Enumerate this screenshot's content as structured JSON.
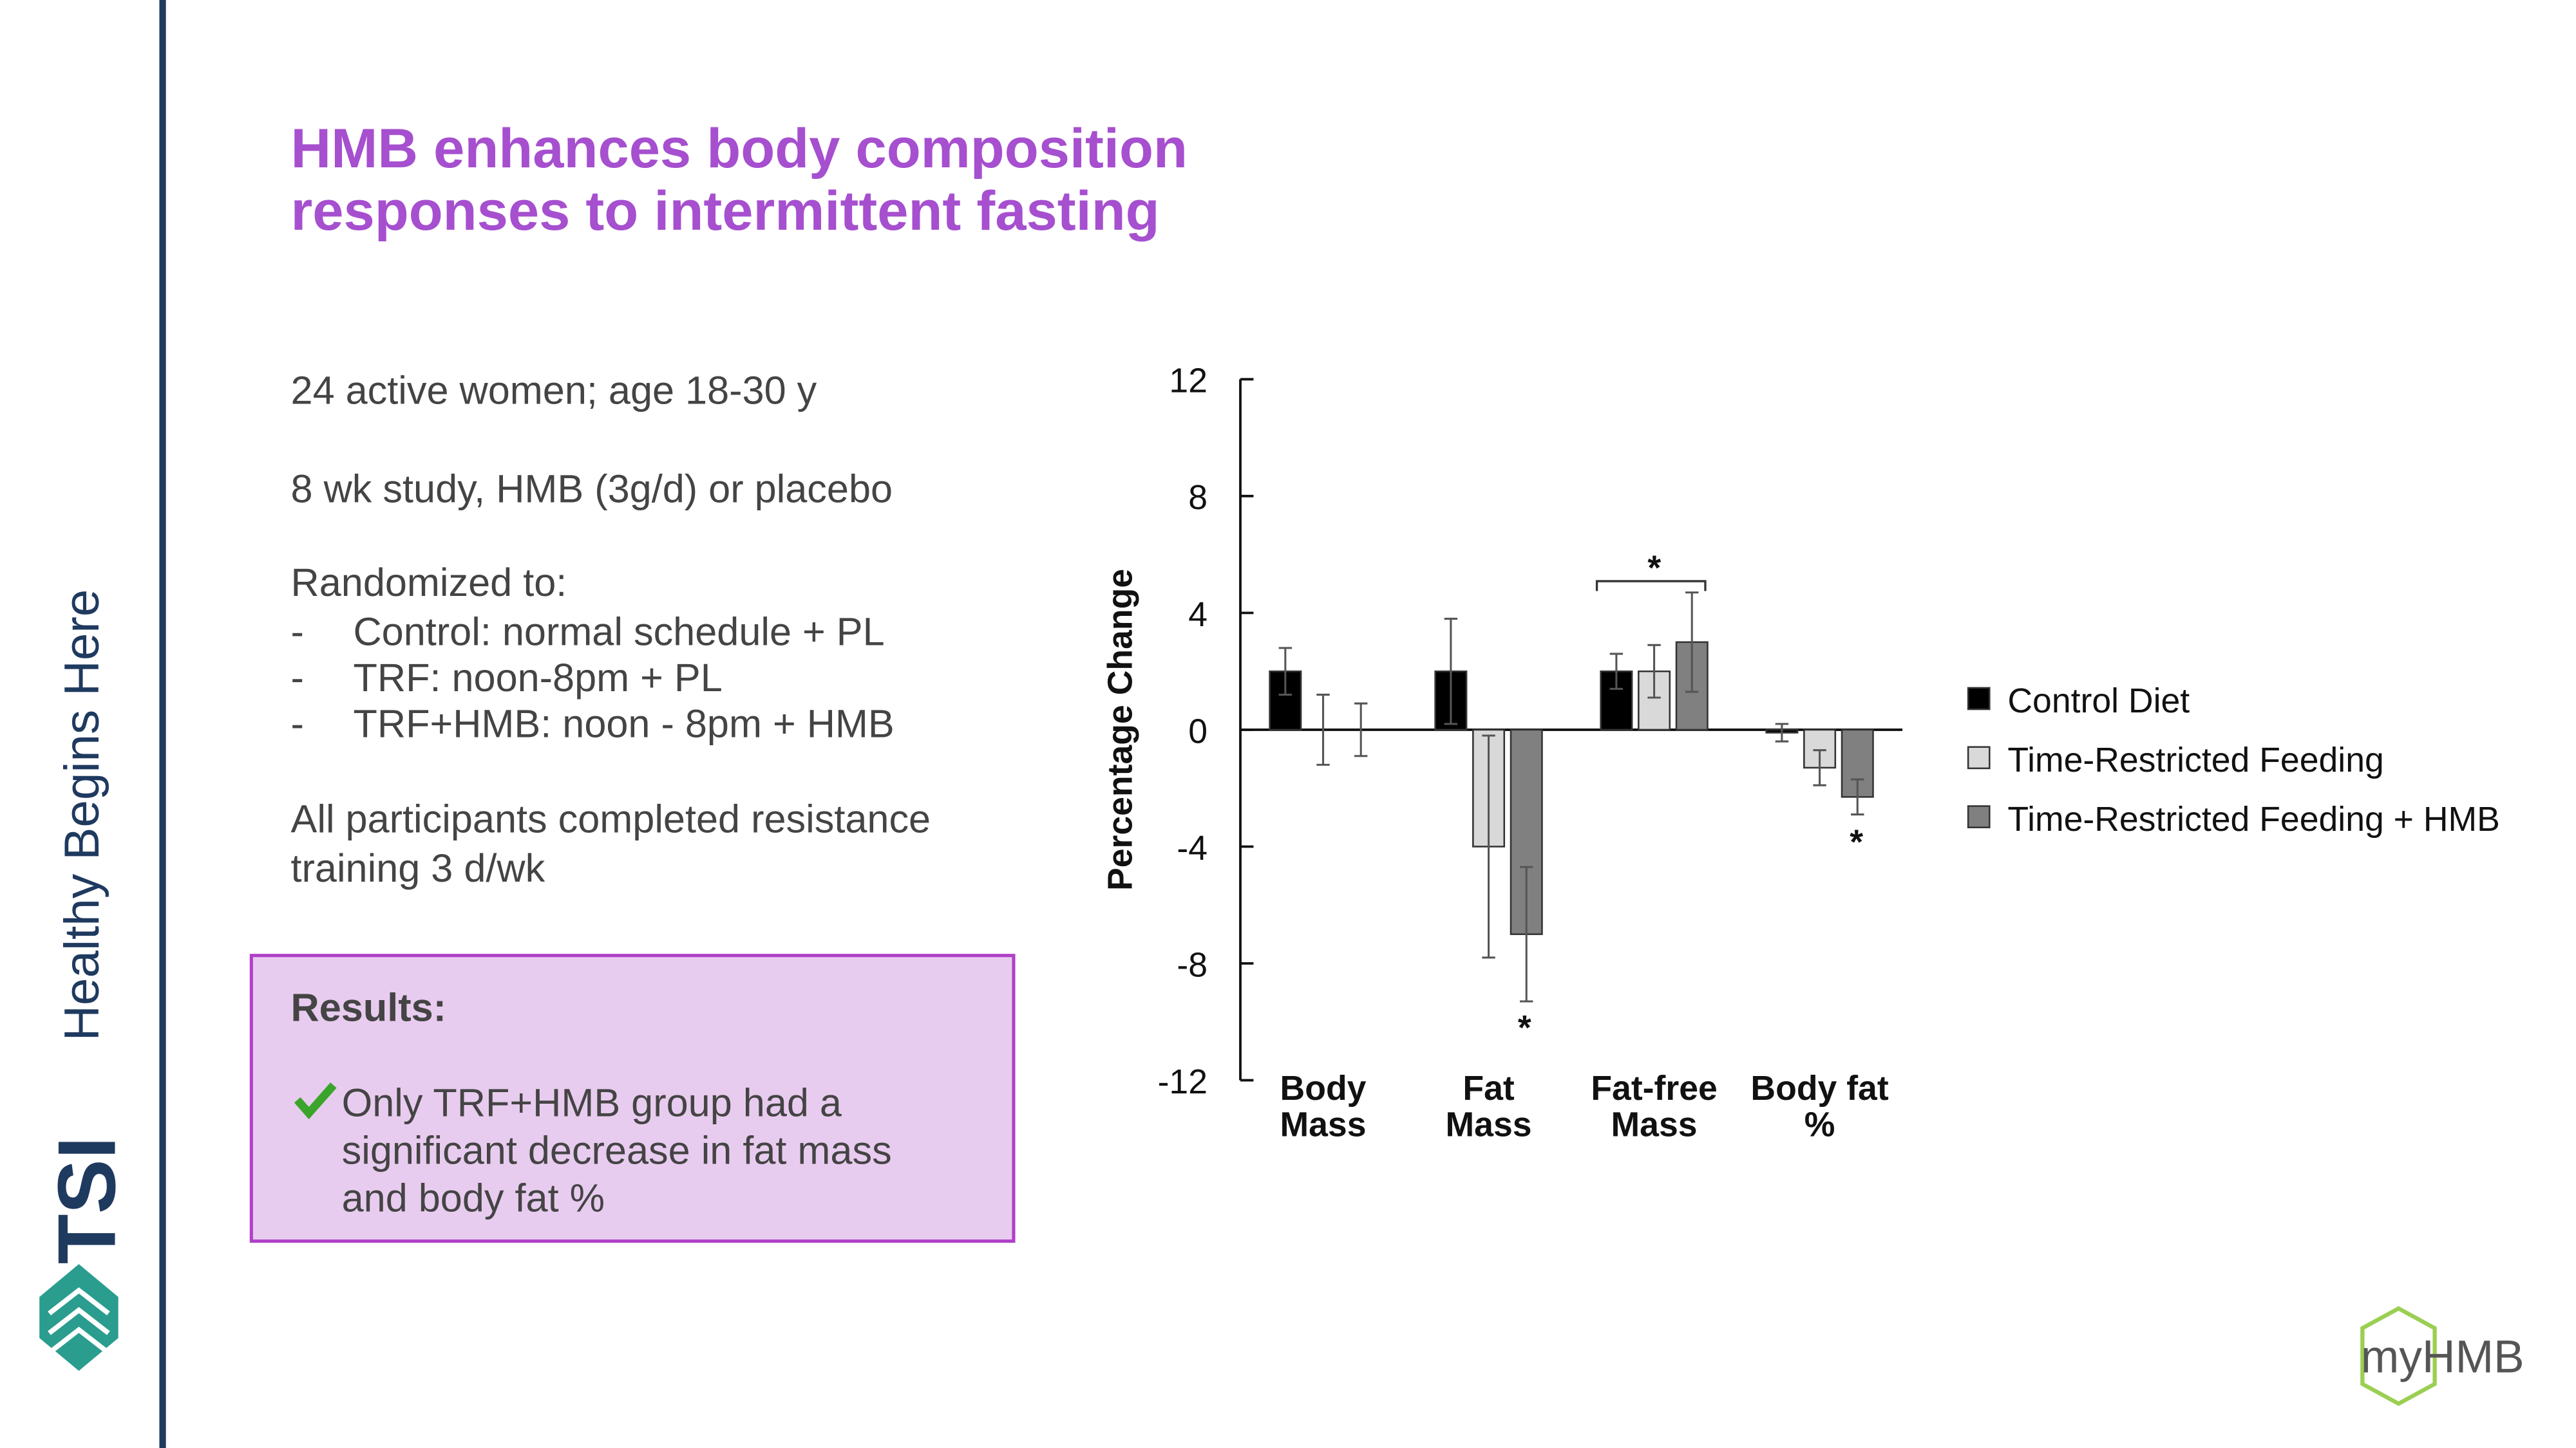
{
  "slide": {
    "title": [
      "HMB enhances body composition",
      "responses to intermittent fasting"
    ],
    "body": [
      "24 active women;  age 18-30 y",
      "8 wk study, HMB (3g/d) or placebo",
      "Randomized to:"
    ],
    "groups": [
      "Control: normal schedule + PL",
      "TRF:  noon-8pm + PL",
      "TRF+HMB: noon - 8pm + HMB"
    ],
    "bullet": "-",
    "training": [
      "All participants completed resistance",
      "training 3 d/wk"
    ],
    "results_title": "Results:",
    "results": [
      "Only TRF+HMB group had a",
      "significant decrease in fat mass",
      "and body fat %"
    ],
    "sidebar": "Healthy Begins Here",
    "brand": "TSI",
    "logo": "myHMB"
  },
  "chart_data": {
    "type": "bar",
    "y_label": "Percentage Change",
    "categories": [
      [
        "Body",
        "Mass"
      ],
      [
        "Fat",
        "Mass"
      ],
      [
        "Fat-free",
        "Mass"
      ],
      [
        "Body fat",
        "%"
      ]
    ],
    "series": [
      {
        "name": "Control Diet",
        "color": "#000000",
        "values": [
          2,
          2,
          2,
          -0.1
        ],
        "errors": [
          0.8,
          1.8,
          0.6,
          0.3
        ]
      },
      {
        "name": "Time-Restricted Feeding",
        "color": "#d9d9d9",
        "values": [
          0,
          -4,
          2,
          -1.3
        ],
        "errors": [
          1.2,
          3.8,
          0.9,
          0.6
        ]
      },
      {
        "name": "Time-Restricted Feeding + HMB",
        "color": "#808080",
        "values": [
          0,
          -7,
          3,
          -2.3
        ],
        "errors": [
          0.9,
          2.3,
          1.7,
          0.6
        ]
      }
    ],
    "ylim": [
      -12,
      12
    ],
    "yticks": [
      12,
      8,
      4,
      0,
      -4,
      -8,
      -12
    ],
    "annotations": [
      "*",
      "*",
      "*"
    ]
  }
}
